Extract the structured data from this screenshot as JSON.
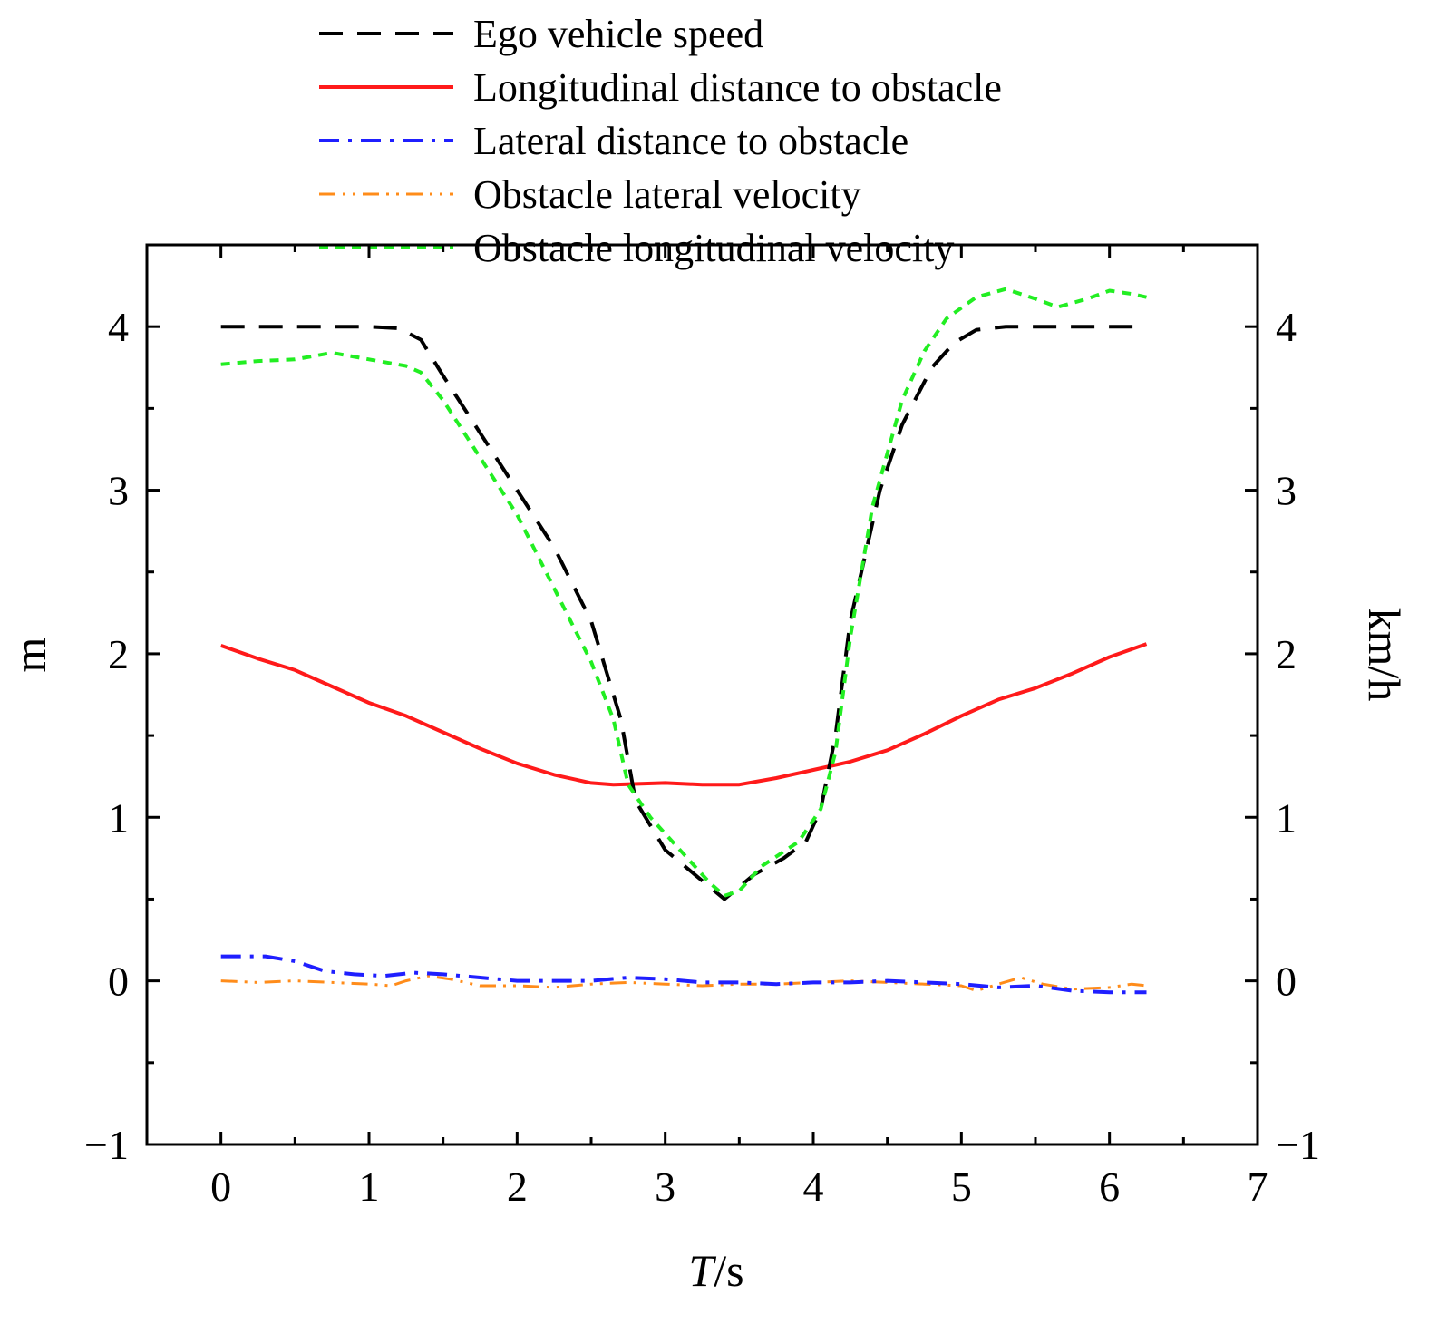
{
  "chart_data": {
    "type": "line",
    "title": "",
    "xlabel_italic": "T",
    "xlabel_unit": "/s",
    "ylabel_left": "m",
    "ylabel_right": "km/h",
    "xlim": [
      -0.5,
      7
    ],
    "ylim": [
      -1,
      4.5
    ],
    "x_ticks": [
      0,
      1,
      2,
      3,
      4,
      5,
      6,
      7
    ],
    "x_tick_labels": [
      "0",
      "1",
      "2",
      "3",
      "4",
      "5",
      "6",
      "7"
    ],
    "y_ticks": [
      -1,
      0,
      1,
      2,
      3,
      4
    ],
    "y_tick_labels": [
      "−1",
      "0",
      "1",
      "2",
      "3",
      "4"
    ],
    "legend_position": "top",
    "series": [
      {
        "name": "Ego vehicle speed",
        "color": "#000000",
        "style": "dashed",
        "points": [
          [
            0,
            4.0
          ],
          [
            0.5,
            4.0
          ],
          [
            1.0,
            4.0
          ],
          [
            1.2,
            3.99
          ],
          [
            1.35,
            3.92
          ],
          [
            1.5,
            3.7
          ],
          [
            1.75,
            3.35
          ],
          [
            2.0,
            3.0
          ],
          [
            2.25,
            2.65
          ],
          [
            2.5,
            2.2
          ],
          [
            2.6,
            1.9
          ],
          [
            2.7,
            1.6
          ],
          [
            2.8,
            1.1
          ],
          [
            3.0,
            0.8
          ],
          [
            3.2,
            0.65
          ],
          [
            3.4,
            0.5
          ],
          [
            3.6,
            0.65
          ],
          [
            3.8,
            0.75
          ],
          [
            3.95,
            0.85
          ],
          [
            4.05,
            1.05
          ],
          [
            4.15,
            1.5
          ],
          [
            4.25,
            2.2
          ],
          [
            4.45,
            3.0
          ],
          [
            4.6,
            3.4
          ],
          [
            4.8,
            3.75
          ],
          [
            4.95,
            3.9
          ],
          [
            5.1,
            3.98
          ],
          [
            5.3,
            4.0
          ],
          [
            6.25,
            4.0
          ]
        ]
      },
      {
        "name": "Longitudinal distance to obstacle",
        "color": "#ff1a1a",
        "style": "solid",
        "points": [
          [
            0,
            2.05
          ],
          [
            0.25,
            1.97
          ],
          [
            0.5,
            1.9
          ],
          [
            0.75,
            1.8
          ],
          [
            1.0,
            1.7
          ],
          [
            1.25,
            1.62
          ],
          [
            1.5,
            1.52
          ],
          [
            1.75,
            1.42
          ],
          [
            2.0,
            1.33
          ],
          [
            2.25,
            1.26
          ],
          [
            2.5,
            1.21
          ],
          [
            2.65,
            1.2
          ],
          [
            3.0,
            1.21
          ],
          [
            3.25,
            1.2
          ],
          [
            3.5,
            1.2
          ],
          [
            3.75,
            1.24
          ],
          [
            4.0,
            1.29
          ],
          [
            4.25,
            1.34
          ],
          [
            4.5,
            1.41
          ],
          [
            4.75,
            1.51
          ],
          [
            5.0,
            1.62
          ],
          [
            5.25,
            1.72
          ],
          [
            5.5,
            1.79
          ],
          [
            5.75,
            1.88
          ],
          [
            6.0,
            1.98
          ],
          [
            6.25,
            2.06
          ]
        ]
      },
      {
        "name": "Lateral distance to obstacle",
        "color": "#1f1fff",
        "style": "dashdot",
        "points": [
          [
            0,
            0.15
          ],
          [
            0.3,
            0.15
          ],
          [
            0.5,
            0.12
          ],
          [
            0.7,
            0.06
          ],
          [
            0.9,
            0.04
          ],
          [
            1.1,
            0.03
          ],
          [
            1.3,
            0.05
          ],
          [
            1.5,
            0.04
          ],
          [
            1.75,
            0.02
          ],
          [
            2.0,
            0.0
          ],
          [
            2.25,
            0.0
          ],
          [
            2.5,
            0.0
          ],
          [
            2.75,
            0.02
          ],
          [
            3.0,
            0.01
          ],
          [
            3.25,
            -0.01
          ],
          [
            3.5,
            -0.01
          ],
          [
            3.75,
            -0.02
          ],
          [
            4.0,
            -0.01
          ],
          [
            4.25,
            -0.01
          ],
          [
            4.5,
            0.0
          ],
          [
            4.75,
            -0.01
          ],
          [
            5.0,
            -0.02
          ],
          [
            5.25,
            -0.04
          ],
          [
            5.5,
            -0.03
          ],
          [
            5.75,
            -0.06
          ],
          [
            6.0,
            -0.07
          ],
          [
            6.25,
            -0.07
          ]
        ]
      },
      {
        "name": "Obstacle lateral velocity",
        "color": "#ff8c1a",
        "style": "dashdotdot",
        "points": [
          [
            0,
            0.0
          ],
          [
            0.25,
            -0.01
          ],
          [
            0.5,
            0.0
          ],
          [
            0.75,
            -0.01
          ],
          [
            1.0,
            -0.02
          ],
          [
            1.15,
            -0.03
          ],
          [
            1.25,
            0.0
          ],
          [
            1.4,
            0.03
          ],
          [
            1.55,
            0.01
          ],
          [
            1.75,
            -0.03
          ],
          [
            2.0,
            -0.03
          ],
          [
            2.25,
            -0.04
          ],
          [
            2.5,
            -0.02
          ],
          [
            2.75,
            -0.01
          ],
          [
            3.0,
            -0.02
          ],
          [
            3.25,
            -0.03
          ],
          [
            3.5,
            -0.02
          ],
          [
            3.75,
            -0.02
          ],
          [
            4.0,
            -0.01
          ],
          [
            4.25,
            0.0
          ],
          [
            4.5,
            -0.01
          ],
          [
            4.75,
            -0.02
          ],
          [
            5.0,
            -0.03
          ],
          [
            5.1,
            -0.06
          ],
          [
            5.25,
            -0.02
          ],
          [
            5.4,
            0.02
          ],
          [
            5.55,
            -0.02
          ],
          [
            5.75,
            -0.05
          ],
          [
            6.0,
            -0.04
          ],
          [
            6.15,
            -0.02
          ],
          [
            6.25,
            -0.03
          ]
        ]
      },
      {
        "name": "Obstacle longitudinal velocity",
        "color": "#22ee22",
        "style": "dotted",
        "points": [
          [
            0,
            3.77
          ],
          [
            0.25,
            3.79
          ],
          [
            0.5,
            3.8
          ],
          [
            0.75,
            3.84
          ],
          [
            1.0,
            3.8
          ],
          [
            1.25,
            3.76
          ],
          [
            1.35,
            3.72
          ],
          [
            1.5,
            3.55
          ],
          [
            1.75,
            3.2
          ],
          [
            2.0,
            2.85
          ],
          [
            2.25,
            2.4
          ],
          [
            2.5,
            1.95
          ],
          [
            2.65,
            1.6
          ],
          [
            2.75,
            1.2
          ],
          [
            2.9,
            1.0
          ],
          [
            3.1,
            0.8
          ],
          [
            3.3,
            0.6
          ],
          [
            3.4,
            0.52
          ],
          [
            3.5,
            0.55
          ],
          [
            3.65,
            0.7
          ],
          [
            3.9,
            0.85
          ],
          [
            4.05,
            1.05
          ],
          [
            4.15,
            1.4
          ],
          [
            4.25,
            2.1
          ],
          [
            4.4,
            2.9
          ],
          [
            4.6,
            3.55
          ],
          [
            4.75,
            3.85
          ],
          [
            4.9,
            4.05
          ],
          [
            5.1,
            4.18
          ],
          [
            5.3,
            4.23
          ],
          [
            5.5,
            4.17
          ],
          [
            5.65,
            4.12
          ],
          [
            5.85,
            4.17
          ],
          [
            6.0,
            4.22
          ],
          [
            6.15,
            4.2
          ],
          [
            6.25,
            4.18
          ]
        ]
      }
    ]
  }
}
